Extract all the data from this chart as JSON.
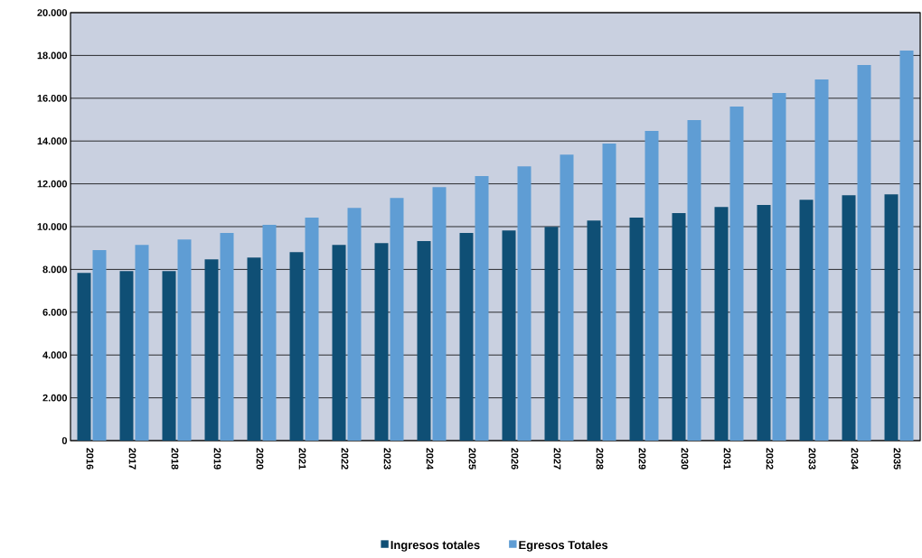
{
  "chart_data": {
    "type": "bar",
    "categories": [
      "2016",
      "2017",
      "2018",
      "2019",
      "2020",
      "2021",
      "2022",
      "2023",
      "2024",
      "2025",
      "2026",
      "2027",
      "2028",
      "2029",
      "2030",
      "2031",
      "2032",
      "2033",
      "2034",
      "2035"
    ],
    "series": [
      {
        "name": "Ingresos totales",
        "color": "#0f4f75",
        "values": [
          7840,
          7920,
          7920,
          8470,
          8560,
          8810,
          9150,
          9230,
          9320,
          9700,
          9820,
          9990,
          10290,
          10420,
          10630,
          10920,
          11010,
          11260,
          11470,
          11510
        ]
      },
      {
        "name": "Egresos Totales",
        "color": "#5f9dd4",
        "values": [
          8900,
          9150,
          9400,
          9700,
          10080,
          10420,
          10880,
          11340,
          11850,
          12360,
          12820,
          13370,
          13880,
          14470,
          14980,
          15610,
          16240,
          16880,
          17550,
          18230
        ]
      }
    ],
    "ylim": [
      0,
      20000
    ],
    "yticks": [
      0,
      {
        "value": 2000,
        "label": "2.000"
      },
      {
        "value": 4000,
        "label": "4.000"
      },
      {
        "value": 6000,
        "label": "6.000"
      },
      {
        "value": 8000,
        "label": "8.000"
      },
      {
        "value": 10000,
        "label": "10.000"
      },
      {
        "value": 12000,
        "label": "12.000"
      },
      {
        "value": 14000,
        "label": "14.000"
      },
      {
        "value": 16000,
        "label": "16.000"
      },
      {
        "value": 18000,
        "label": "18.000"
      },
      {
        "value": 20000,
        "label": "20.000"
      }
    ],
    "grid": "y",
    "legend": "bottom"
  }
}
